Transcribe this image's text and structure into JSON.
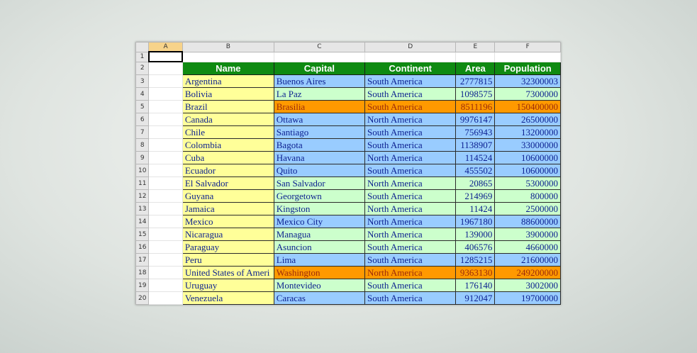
{
  "spreadsheet": {
    "column_letters": [
      "A",
      "B",
      "C",
      "D",
      "E",
      "F"
    ],
    "row_numbers": [
      "1",
      "2",
      "3",
      "4",
      "5",
      "6",
      "7",
      "8",
      "9",
      "10",
      "11",
      "12",
      "13",
      "14",
      "15",
      "16",
      "17",
      "18",
      "19",
      "20"
    ],
    "headers": [
      "Name",
      "Capital",
      "Continent",
      "Area",
      "Population"
    ],
    "colors": {
      "header_bg": "#0f8a12",
      "name_col": "#ffff99",
      "blue": "#99ccff",
      "green": "#ccffcc",
      "orange": "#ff9900",
      "text": "#0b1f8f"
    },
    "rows": [
      {
        "name": "Argentina",
        "capital": "Buenos Aires",
        "continent": "South America",
        "area": "2777815",
        "population": "32300003",
        "fill": "blue"
      },
      {
        "name": "Bolivia",
        "capital": "La Paz",
        "continent": "South America",
        "area": "1098575",
        "population": "7300000",
        "fill": "green"
      },
      {
        "name": "Brazil",
        "capital": "Brasilia",
        "continent": "South America",
        "area": "8511196",
        "population": "150400000",
        "fill": "orange"
      },
      {
        "name": "Canada",
        "capital": "Ottawa",
        "continent": "North America",
        "area": "9976147",
        "population": "26500000",
        "fill": "blue"
      },
      {
        "name": "Chile",
        "capital": "Santiago",
        "continent": "South America",
        "area": "756943",
        "population": "13200000",
        "fill": "blue"
      },
      {
        "name": "Colombia",
        "capital": "Bagota",
        "continent": "South America",
        "area": "1138907",
        "population": "33000000",
        "fill": "blue"
      },
      {
        "name": "Cuba",
        "capital": "Havana",
        "continent": "North America",
        "area": "114524",
        "population": "10600000",
        "fill": "blue"
      },
      {
        "name": "Ecuador",
        "capital": "Quito",
        "continent": "South America",
        "area": "455502",
        "population": "10600000",
        "fill": "blue"
      },
      {
        "name": "El Salvador",
        "capital": "San Salvador",
        "continent": "North America",
        "area": "20865",
        "population": "5300000",
        "fill": "green"
      },
      {
        "name": "Guyana",
        "capital": "Georgetown",
        "continent": "South America",
        "area": "214969",
        "population": "800000",
        "fill": "green"
      },
      {
        "name": "Jamaica",
        "capital": "Kingston",
        "continent": "North America",
        "area": "11424",
        "population": "2500000",
        "fill": "green"
      },
      {
        "name": "Mexico",
        "capital": "Mexico City",
        "continent": "North America",
        "area": "1967180",
        "population": "88600000",
        "fill": "blue"
      },
      {
        "name": "Nicaragua",
        "capital": "Managua",
        "continent": "North America",
        "area": "139000",
        "population": "3900000",
        "fill": "green"
      },
      {
        "name": "Paraguay",
        "capital": "Asuncion",
        "continent": "South America",
        "area": "406576",
        "population": "4660000",
        "fill": "green"
      },
      {
        "name": "Peru",
        "capital": "Lima",
        "continent": "South America",
        "area": "1285215",
        "population": "21600000",
        "fill": "blue"
      },
      {
        "name": "United States of Ameri",
        "capital": "Washington",
        "continent": "North America",
        "area": "9363130",
        "population": "249200000",
        "fill": "orange"
      },
      {
        "name": "Uruguay",
        "capital": "Montevideo",
        "continent": "South America",
        "area": "176140",
        "population": "3002000",
        "fill": "green"
      },
      {
        "name": "Venezuela",
        "capital": "Caracas",
        "continent": "South America",
        "area": "912047",
        "population": "19700000",
        "fill": "blue"
      }
    ]
  }
}
